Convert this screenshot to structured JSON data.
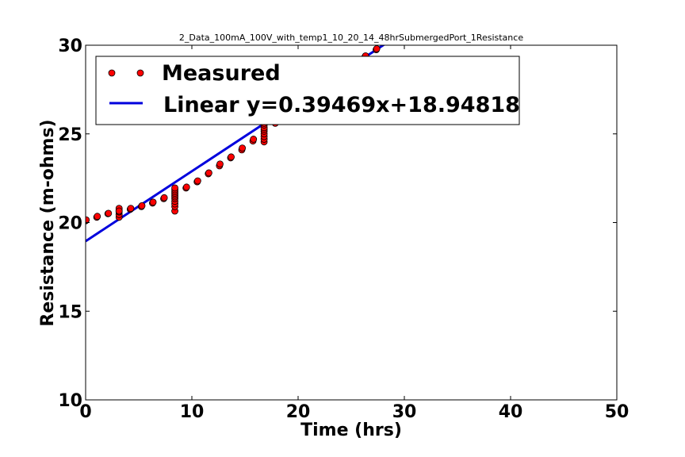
{
  "chart_data": {
    "type": "scatter",
    "title": "2_Data_100mA_100V_with_temp1_10_20_14_48hrSubmergedPort_1Resistance",
    "xlabel": "Time (hrs)",
    "ylabel": "Resistance (m-ohms)",
    "xlim": [
      0,
      50
    ],
    "ylim": [
      10,
      30
    ],
    "xticks": [
      "0",
      "10",
      "20",
      "30",
      "40",
      "50"
    ],
    "yticks": [
      "10",
      "15",
      "20",
      "25",
      "30"
    ],
    "grid": false,
    "legend_position": "top-left",
    "series": [
      {
        "name": "Measured",
        "kind": "points",
        "color": "#ff0000",
        "x": [
          0,
          0.05,
          1.05,
          1.1,
          2.1,
          2.15,
          3.15,
          3.15,
          3.15,
          3.15,
          3.15,
          3.15,
          4.2,
          4.25,
          5.25,
          5.3,
          6.3,
          6.35,
          7.35,
          7.4,
          8.4,
          8.4,
          8.4,
          8.4,
          8.4,
          8.4,
          8.4,
          8.4,
          8.4,
          8.4,
          8.4,
          9.45,
          9.5,
          10.5,
          10.55,
          11.55,
          11.6,
          12.6,
          12.65,
          13.65,
          13.7,
          14.7,
          14.75,
          15.75,
          15.8,
          16.8,
          16.8,
          16.8,
          16.8,
          16.8,
          16.8,
          16.8,
          16.8,
          16.8,
          16.8,
          16.8,
          16.8,
          16.8,
          17.85,
          26.3,
          26.35,
          27.35,
          27.4
        ],
        "y": [
          20.1,
          20.15,
          20.3,
          20.35,
          20.5,
          20.52,
          20.3,
          20.45,
          20.6,
          20.7,
          20.8,
          20.65,
          20.75,
          20.8,
          20.9,
          20.95,
          21.1,
          21.15,
          21.35,
          21.4,
          20.65,
          20.9,
          21.05,
          21.2,
          21.35,
          21.45,
          21.55,
          21.65,
          21.75,
          21.85,
          21.95,
          21.95,
          22.0,
          22.3,
          22.35,
          22.75,
          22.8,
          23.2,
          23.3,
          23.65,
          23.7,
          24.1,
          24.2,
          24.6,
          24.7,
          24.55,
          24.7,
          24.85,
          25.0,
          25.15,
          25.25,
          25.35,
          25.5,
          25.6,
          25.75,
          25.9,
          26.05,
          26.2,
          25.6,
          29.35,
          29.4,
          29.75,
          29.8
        ]
      },
      {
        "name": "Linear y=0.39469x+18.94818",
        "kind": "line",
        "color": "#0000dd",
        "slope": 0.39469,
        "intercept": 18.94818
      }
    ]
  }
}
